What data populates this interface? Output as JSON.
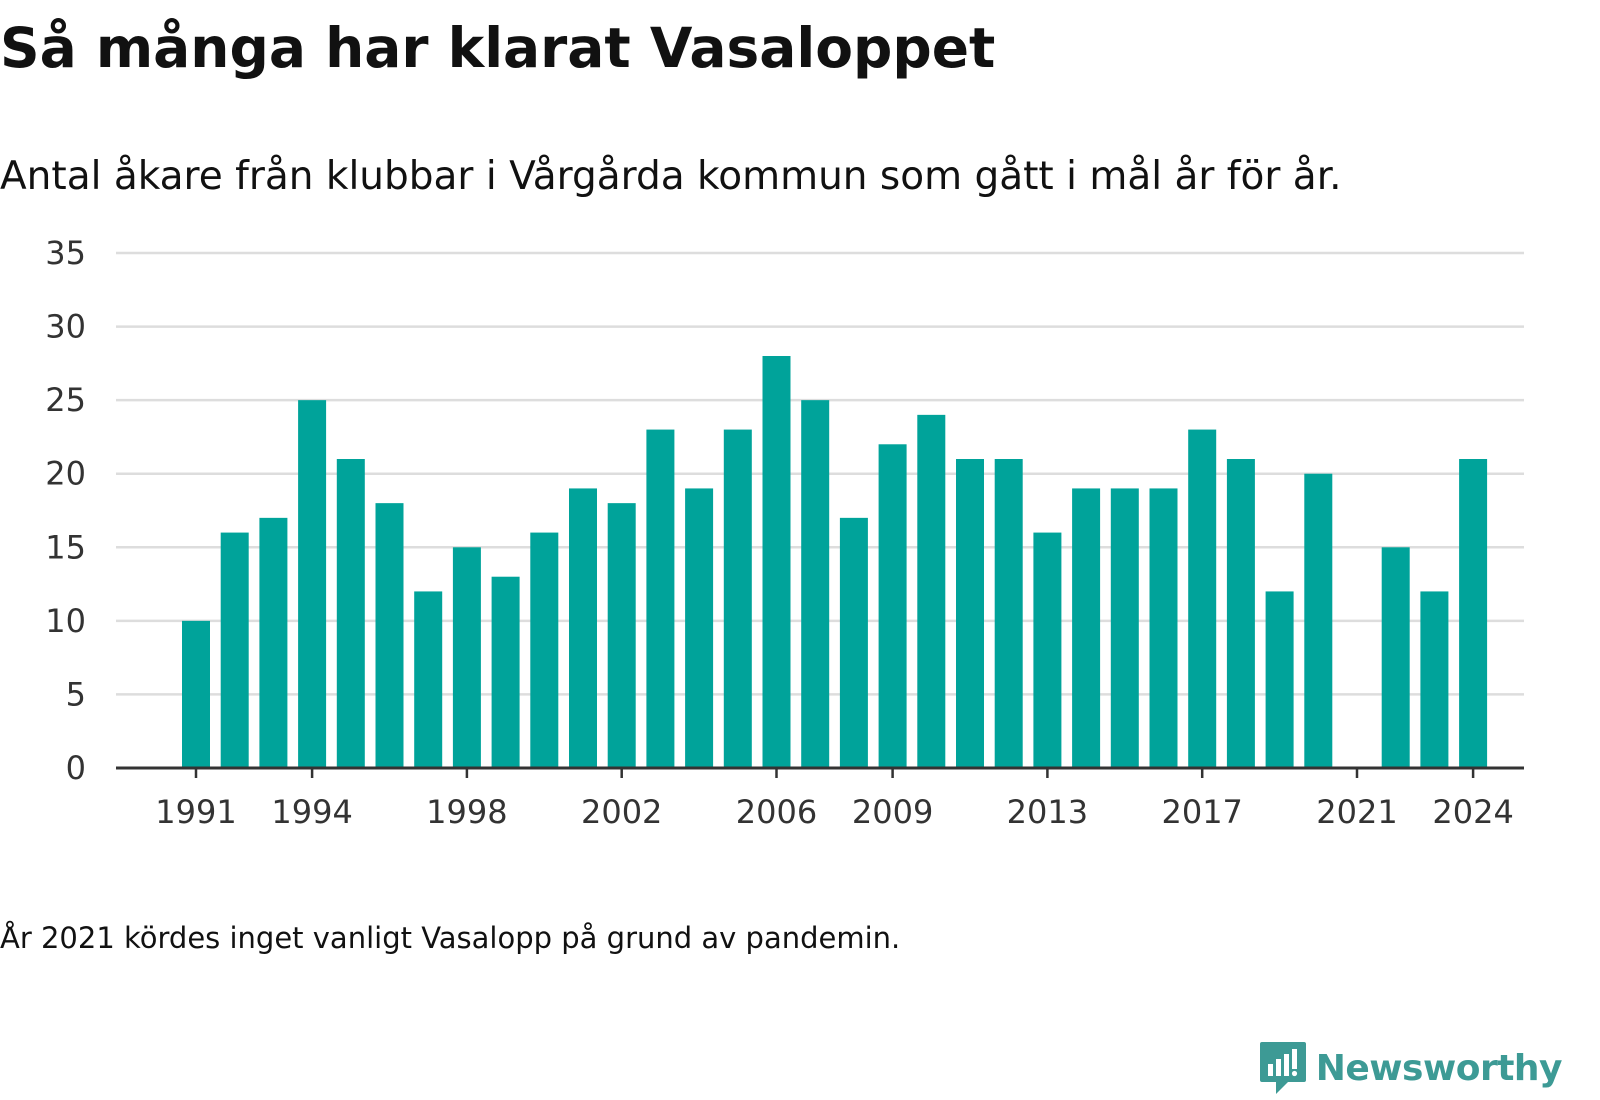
{
  "title": "Så många har klarat Vasaloppet",
  "subtitle": "Antal åkare från klubbar i Vårgårda kommun som gått i mål år för år.",
  "note": "År 2021 kördes inget vanligt Vasalopp på grund av pandemin.",
  "brand": {
    "name": "Newsworthy",
    "icon": "newsworthy-logo-icon",
    "color": "#3d9a95"
  },
  "colors": {
    "bar": "#00a39a",
    "grid": "#dddddd",
    "axis": "#333333"
  },
  "chart_data": {
    "type": "bar",
    "categories": [
      "1991",
      "1992",
      "1993",
      "1994",
      "1995",
      "1996",
      "1997",
      "1998",
      "1999",
      "2000",
      "2001",
      "2002",
      "2003",
      "2004",
      "2005",
      "2006",
      "2007",
      "2008",
      "2009",
      "2010",
      "2011",
      "2012",
      "2013",
      "2014",
      "2015",
      "2016",
      "2017",
      "2018",
      "2019",
      "2020",
      "2021",
      "2022",
      "2023",
      "2024"
    ],
    "values": [
      10,
      16,
      17,
      25,
      21,
      18,
      12,
      15,
      13,
      16,
      19,
      18,
      23,
      19,
      23,
      28,
      25,
      17,
      22,
      24,
      21,
      21,
      16,
      19,
      19,
      19,
      23,
      21,
      12,
      20,
      0,
      15,
      12,
      21
    ],
    "x_tick_labels": [
      "1991",
      "1994",
      "1998",
      "2002",
      "2006",
      "2009",
      "2013",
      "2017",
      "2021",
      "2024"
    ],
    "y_ticks": [
      0,
      5,
      10,
      15,
      20,
      25,
      30,
      35
    ],
    "ylim": [
      0,
      35
    ],
    "xlabel": "",
    "ylabel": "",
    "grid": true,
    "legend": "none"
  }
}
